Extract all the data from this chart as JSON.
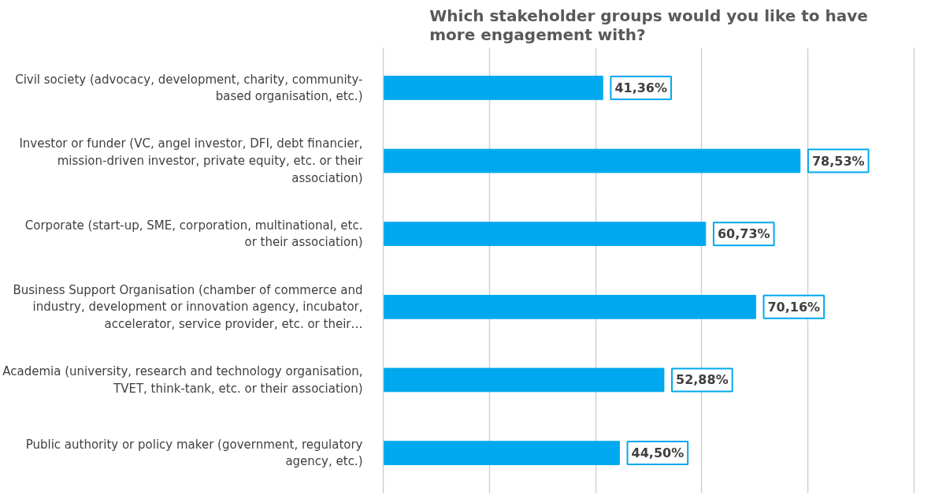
{
  "chart_data": {
    "type": "bar",
    "orientation": "horizontal",
    "title": "Which stakeholder groups would you like to have more engagement with?",
    "categories": [
      "Civil society (advocacy, development, charity, community-based organisation, etc.)",
      "Investor or funder (VC, angel investor, DFI, debt financier, mission-driven investor, private equity, etc. or their association)",
      "Corporate (start-up, SME, corporation, multinational, etc. or their association)",
      "Business Support Organisation (chamber of commerce and industry, development or innovation agency, incubator, accelerator, service provider, etc. or their…",
      "Academia (university, research and technology organisation, TVET, think-tank, etc. or their association)",
      "Public authority or policy maker (government, regulatory agency, etc.)"
    ],
    "values": [
      41.36,
      78.53,
      60.73,
      70.16,
      52.88,
      44.5
    ],
    "value_labels": [
      "41,36%",
      "78,53%",
      "60,73%",
      "70,16%",
      "52,88%",
      "44,50%"
    ],
    "color": "#00a8ef",
    "xlim": [
      0,
      100
    ],
    "xticks": [
      {
        "value": 0,
        "label": null
      },
      {
        "value": 20,
        "label": null
      },
      {
        "value": 40,
        "label": null
      },
      {
        "value": 60,
        "label": null
      },
      {
        "value": 80,
        "label": null
      },
      {
        "value": 100,
        "label": null
      }
    ],
    "grid": "x",
    "tick_labels": "y"
  }
}
